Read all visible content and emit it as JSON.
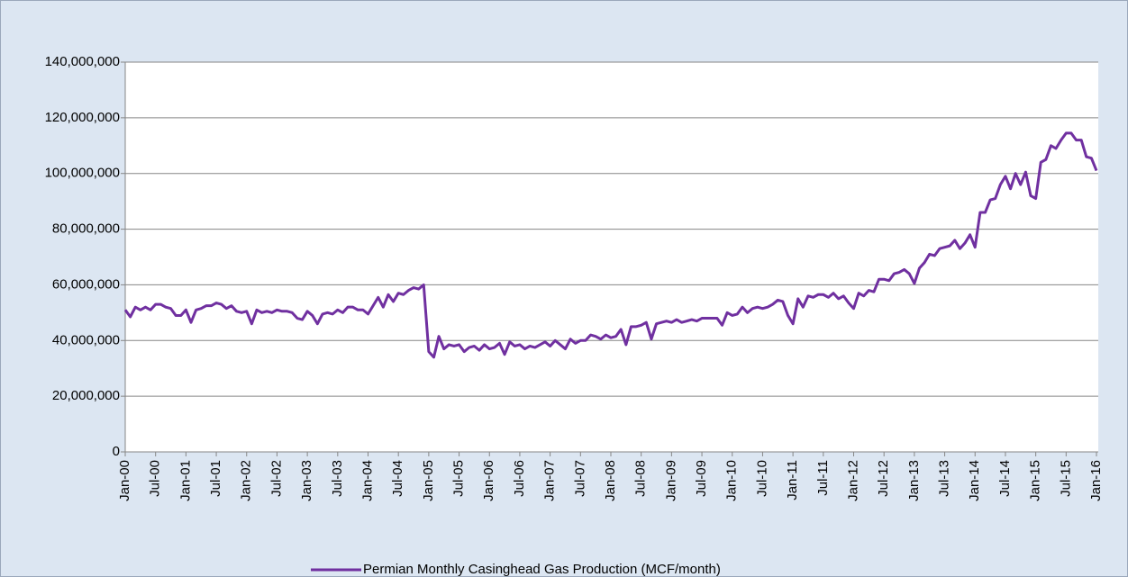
{
  "chart_data": {
    "type": "line",
    "categories": [
      "Jan-00",
      null,
      null,
      null,
      null,
      null,
      "Jul-00",
      null,
      null,
      null,
      null,
      null,
      "Jan-01",
      null,
      null,
      null,
      null,
      null,
      "Jul-01",
      null,
      null,
      null,
      null,
      null,
      "Jan-02",
      null,
      null,
      null,
      null,
      null,
      "Jul-02",
      null,
      null,
      null,
      null,
      null,
      "Jan-03",
      null,
      null,
      null,
      null,
      null,
      "Jul-03",
      null,
      null,
      null,
      null,
      null,
      "Jan-04",
      null,
      null,
      null,
      null,
      null,
      "Jul-04",
      null,
      null,
      null,
      null,
      null,
      "Jan-05",
      null,
      null,
      null,
      null,
      null,
      "Jul-05",
      null,
      null,
      null,
      null,
      null,
      "Jan-06",
      null,
      null,
      null,
      null,
      null,
      "Jul-06",
      null,
      null,
      null,
      null,
      null,
      "Jan-07",
      null,
      null,
      null,
      null,
      null,
      "Jul-07",
      null,
      null,
      null,
      null,
      null,
      "Jan-08",
      null,
      null,
      null,
      null,
      null,
      "Jul-08",
      null,
      null,
      null,
      null,
      null,
      "Jan-09",
      null,
      null,
      null,
      null,
      null,
      "Jul-09",
      null,
      null,
      null,
      null,
      null,
      "Jan-10",
      null,
      null,
      null,
      null,
      null,
      "Jul-10",
      null,
      null,
      null,
      null,
      null,
      "Jan-11",
      null,
      null,
      null,
      null,
      null,
      "Jul-11",
      null,
      null,
      null,
      null,
      null,
      "Jan-12",
      null,
      null,
      null,
      null,
      null,
      "Jul-12",
      null,
      null,
      null,
      null,
      null,
      "Jan-13",
      null,
      null,
      null,
      null,
      null,
      "Jul-13",
      null,
      null,
      null,
      null,
      null,
      "Jan-14",
      null,
      null,
      null,
      null,
      null,
      "Jul-14",
      null,
      null,
      null,
      null,
      null,
      "Jan-15",
      null,
      null,
      null,
      null,
      null,
      "Jul-15",
      null,
      null,
      null,
      null,
      null,
      "Jan-16"
    ],
    "series": [
      {
        "name": "Permian Monthly Casinghead Gas Production (MCF/month)",
        "color": "#7030a0",
        "values": [
          51000000,
          48500000,
          52000000,
          51000000,
          52000000,
          51000000,
          53000000,
          53000000,
          52000000,
          51500000,
          49000000,
          49000000,
          51000000,
          46500000,
          51000000,
          51500000,
          52500000,
          52500000,
          53500000,
          53000000,
          51500000,
          52500000,
          50500000,
          50000000,
          50500000,
          46000000,
          51000000,
          50000000,
          50500000,
          50000000,
          51000000,
          50500000,
          50500000,
          50000000,
          48000000,
          47500000,
          50500000,
          49000000,
          46000000,
          49500000,
          50000000,
          49500000,
          51000000,
          50000000,
          52000000,
          52000000,
          51000000,
          51000000,
          49500000,
          52500000,
          55500000,
          52000000,
          56500000,
          54000000,
          57000000,
          56500000,
          58000000,
          59000000,
          58500000,
          60000000,
          36000000,
          34000000,
          41500000,
          37000000,
          38500000,
          38000000,
          38500000,
          36000000,
          37500000,
          38000000,
          36500000,
          38500000,
          37000000,
          37500000,
          39000000,
          35000000,
          39500000,
          38000000,
          38500000,
          37000000,
          38000000,
          37500000,
          38500000,
          39500000,
          38000000,
          40000000,
          38500000,
          37000000,
          40500000,
          39000000,
          40000000,
          40000000,
          42000000,
          41500000,
          40500000,
          42000000,
          41000000,
          41500000,
          44000000,
          38500000,
          45000000,
          45000000,
          45500000,
          46500000,
          40500000,
          46000000,
          46500000,
          47000000,
          46500000,
          47500000,
          46500000,
          47000000,
          47500000,
          47000000,
          48000000,
          48000000,
          48000000,
          48000000,
          45500000,
          50000000,
          49000000,
          49500000,
          52000000,
          50000000,
          51500000,
          52000000,
          51500000,
          52000000,
          53000000,
          54500000,
          54000000,
          49000000,
          46000000,
          55000000,
          52000000,
          56000000,
          55500000,
          56500000,
          56500000,
          55500000,
          57000000,
          55000000,
          56000000,
          53500000,
          51500000,
          57000000,
          56000000,
          58000000,
          57500000,
          62000000,
          62000000,
          61500000,
          64000000,
          64500000,
          65500000,
          64000000,
          60500000,
          66000000,
          68000000,
          71000000,
          70500000,
          73000000,
          73500000,
          74000000,
          76000000,
          73000000,
          75000000,
          78000000,
          73500000,
          86000000,
          86000000,
          90500000,
          91000000,
          96000000,
          99000000,
          94500000,
          100000000,
          96000000,
          100500000,
          92000000,
          91000000,
          104000000,
          105000000,
          110000000,
          109000000,
          112000000,
          114500000,
          114500000,
          112000000,
          112000000,
          106000000,
          105500000,
          101000000
        ]
      }
    ],
    "ylim": [
      0,
      140000000
    ],
    "yticks": [
      0,
      {
        "value": 20000000,
        "label": "20,000,000"
      },
      {
        "value": 40000000,
        "label": "40,000,000"
      },
      {
        "value": 60000000,
        "label": "60,000,000"
      },
      {
        "value": 80000000,
        "label": "80,000,000"
      },
      {
        "value": 100000000,
        "label": "100,000,000"
      },
      {
        "value": 120000000,
        "label": "120,000,000"
      },
      {
        "value": 140000000,
        "label": "140,000,000"
      }
    ],
    "grid": true,
    "legend": "bottom"
  }
}
